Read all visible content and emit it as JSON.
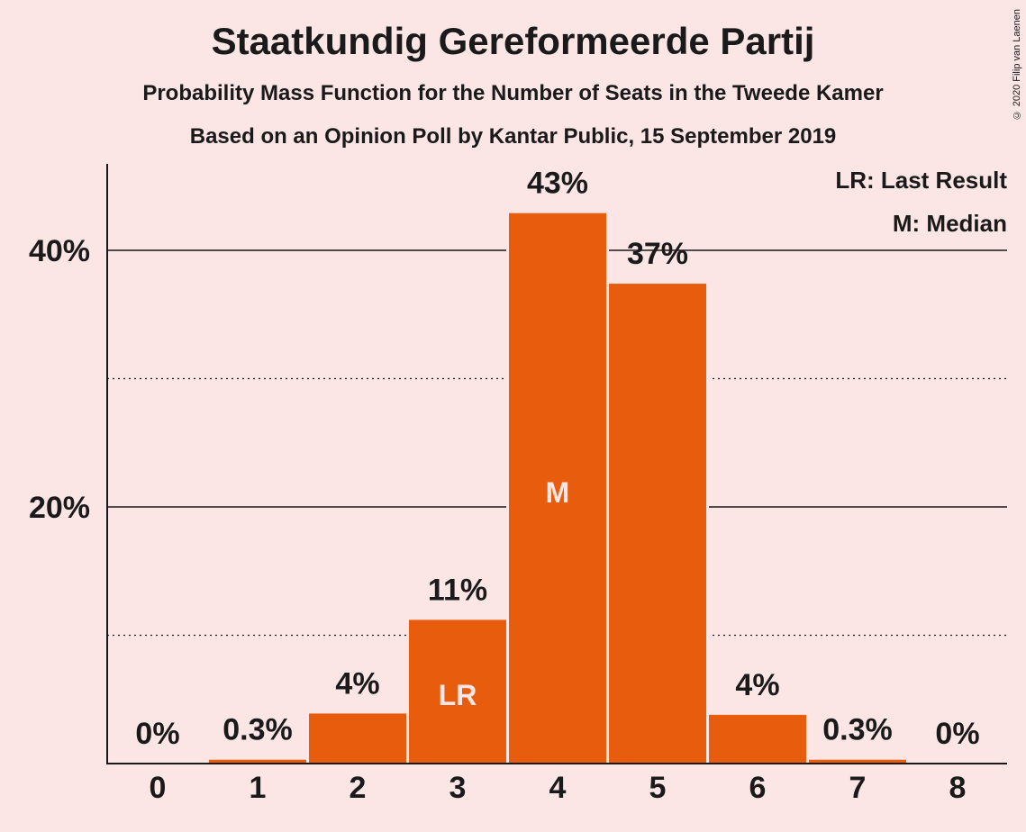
{
  "header": {
    "title": "Staatkundig Gereformeerde Partij",
    "subtitle1": "Probability Mass Function for the Number of Seats in the Tweede Kamer",
    "subtitle2": "Based on an Opinion Poll by Kantar Public, 15 September 2019",
    "copyright": "© 2020 Filip van Laenen"
  },
  "legend": {
    "lr": "LR: Last Result",
    "m": "M: Median"
  },
  "colors": {
    "bar": "#E85C0D",
    "background": "#FCE5E5"
  },
  "chart_data": {
    "type": "bar",
    "categories": [
      "0",
      "1",
      "2",
      "3",
      "4",
      "5",
      "6",
      "7",
      "8"
    ],
    "values": [
      0,
      0.3,
      4,
      11,
      43,
      37,
      4,
      0.3,
      0
    ],
    "bar_heights": [
      0,
      0.3,
      3.9,
      11.2,
      42.9,
      37.4,
      3.8,
      0.3,
      0
    ],
    "value_labels": [
      "0%",
      "0.3%",
      "4%",
      "11%",
      "43%",
      "37%",
      "4%",
      "0.3%",
      "0%"
    ],
    "ylim": [
      0,
      47
    ],
    "yticks": [
      20,
      40
    ],
    "ytick_labels": [
      "20%",
      "40%"
    ],
    "minor_gridlines": [
      10,
      30
    ],
    "markers": [
      {
        "category": "3",
        "label": "LR"
      },
      {
        "category": "4",
        "label": "M"
      }
    ],
    "legend_position": "top-right"
  }
}
